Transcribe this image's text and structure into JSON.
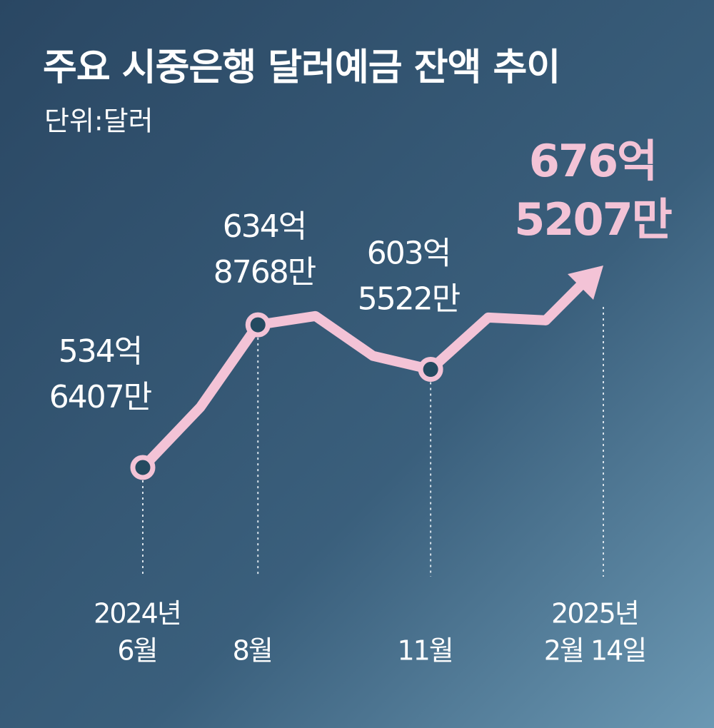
{
  "chart_data": {
    "type": "line",
    "title": "주요 시중은행 달러예금 잔액 추이",
    "subtitle": "단위:달러",
    "categories": [
      [
        "2024년",
        "6월"
      ],
      null,
      [
        "8월"
      ],
      null,
      null,
      [
        "11월"
      ],
      null,
      null,
      [
        "2025년",
        "2월 14일"
      ]
    ],
    "values": [
      53464070000,
      57700000000,
      63487680000,
      64100000000,
      61300000000,
      60355220000,
      64000000000,
      63800000000,
      67652070000
    ],
    "value_labels": [
      [
        "534억",
        "6407만"
      ],
      null,
      [
        "634억",
        "8768만"
      ],
      null,
      null,
      [
        "603억",
        "5522만"
      ],
      null,
      null,
      [
        "676억",
        "5207만"
      ]
    ],
    "color": "#f3c3d6"
  }
}
